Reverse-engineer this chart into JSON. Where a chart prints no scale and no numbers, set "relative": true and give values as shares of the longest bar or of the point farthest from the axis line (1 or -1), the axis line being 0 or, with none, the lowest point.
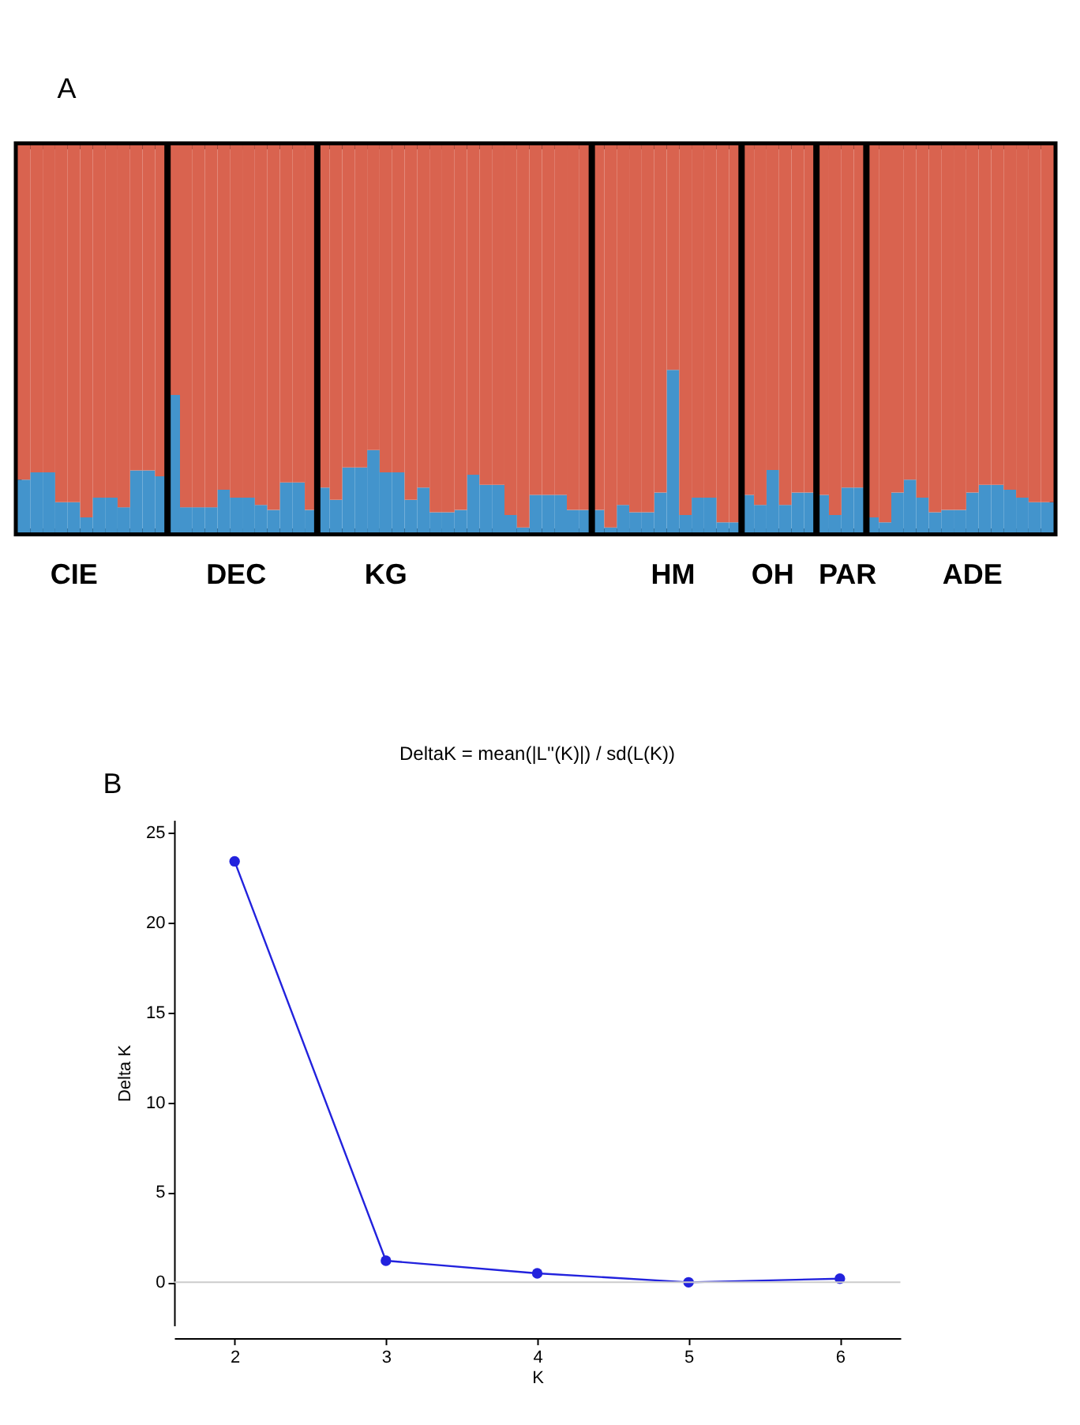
{
  "chart_data": [
    {
      "type": "bar",
      "stacked": true,
      "relative": true,
      "tick_labels": "x",
      "categories": [
        null,
        null,
        null,
        null,
        "CIE",
        null,
        null,
        null,
        null,
        null,
        null,
        null,
        null,
        null,
        null,
        null,
        null,
        "DEC",
        null,
        null,
        null,
        null,
        null,
        null,
        null,
        null,
        null,
        null,
        null,
        "KG",
        null,
        null,
        null,
        null,
        null,
        null,
        null,
        null,
        null,
        null,
        null,
        null,
        null,
        null,
        null,
        null,
        null,
        null,
        null,
        null,
        null,
        null,
        "HM",
        null,
        null,
        null,
        null,
        null,
        null,
        null,
        "OH",
        null,
        null,
        null,
        null,
        null,
        "PAR",
        null,
        null,
        null,
        null,
        null,
        null,
        null,
        null,
        null,
        "ADE",
        null,
        null,
        null,
        null,
        null,
        null
      ],
      "series": [
        {
          "color": "#4394cc",
          "values": [
            0.136,
            0.155,
            0.155,
            0.078,
            0.078,
            0.039,
            0.09,
            0.09,
            0.065,
            0.16,
            0.16,
            0.145,
            0.355,
            0.065,
            0.065,
            0.065,
            0.11,
            0.09,
            0.09,
            0.071,
            0.058,
            0.129,
            0.129,
            0.058,
            0.116,
            0.084,
            0.168,
            0.168,
            0.213,
            0.155,
            0.155,
            0.084,
            0.116,
            0.052,
            0.052,
            0.058,
            0.149,
            0.123,
            0.123,
            0.045,
            0.013,
            0.097,
            0.097,
            0.097,
            0.058,
            0.058,
            0.058,
            0.013,
            0.071,
            0.052,
            0.052,
            0.103,
            0.42,
            0.045,
            0.09,
            0.09,
            0.026,
            0.026,
            0.097,
            0.071,
            0.161,
            0.071,
            0.103,
            0.103,
            0.097,
            0.045,
            0.116,
            0.116,
            0.039,
            0.026,
            0.103,
            0.136,
            0.09,
            0.052,
            0.058,
            0.058,
            0.103,
            0.123,
            0.123,
            0.11,
            0.09,
            0.078,
            0.078
          ]
        },
        {
          "color": "#d9634f",
          "values": [
            0.864,
            0.845,
            0.845,
            0.922,
            0.922,
            0.961,
            0.91,
            0.91,
            0.935,
            0.84,
            0.84,
            0.855,
            0.645,
            0.935,
            0.935,
            0.935,
            0.89,
            0.91,
            0.91,
            0.929,
            0.942,
            0.871,
            0.871,
            0.942,
            0.884,
            0.916,
            0.832,
            0.832,
            0.787,
            0.845,
            0.845,
            0.916,
            0.884,
            0.948,
            0.948,
            0.942,
            0.851,
            0.877,
            0.877,
            0.955,
            0.987,
            0.903,
            0.903,
            0.903,
            0.942,
            0.942,
            0.942,
            0.987,
            0.929,
            0.948,
            0.948,
            0.897,
            0.58,
            0.955,
            0.91,
            0.91,
            0.974,
            0.974,
            0.903,
            0.929,
            0.839,
            0.929,
            0.897,
            0.897,
            0.903,
            0.955,
            0.884,
            0.884,
            0.961,
            0.974,
            0.897,
            0.864,
            0.91,
            0.948,
            0.942,
            0.942,
            0.897,
            0.877,
            0.877,
            0.89,
            0.91,
            0.922,
            0.922
          ]
        }
      ],
      "annotations": [
        "A"
      ]
    },
    {
      "type": "line",
      "title": "DeltaK = mean(|L''(K)|) / sd(L(K))",
      "xlabel": "K",
      "ylabel": "Delta K",
      "x": [
        2,
        3,
        4,
        5,
        6
      ],
      "xlim": [
        1.6,
        6.4
      ],
      "xticks": [
        2,
        3,
        4,
        5,
        6
      ],
      "ylim": [
        -2.4,
        25.7
      ],
      "yticks": [
        0,
        5,
        10,
        15,
        20,
        25
      ],
      "series": [
        {
          "color": "#2222dd",
          "values": [
            23.4,
            1.2,
            0.5,
            0.0,
            0.2
          ]
        }
      ],
      "marker": "circle",
      "line_style": "solid",
      "ref_lines": [
        {
          "axis": "y",
          "value": 0,
          "color": "#cccccc"
        }
      ],
      "annotations": [
        "B"
      ]
    }
  ]
}
